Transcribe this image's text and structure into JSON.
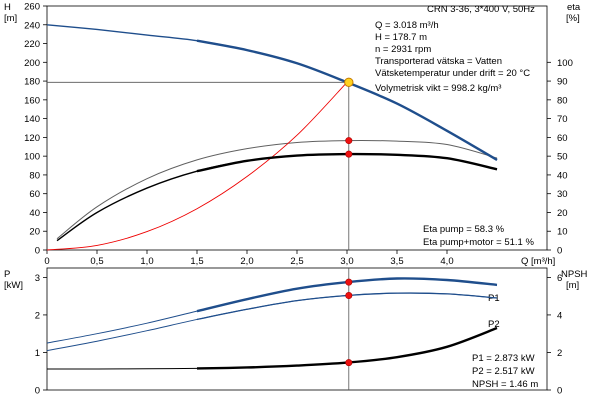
{
  "chart_data": [
    {
      "type": "line",
      "title": "CRN 3-36, 3*400 V, 50Hz",
      "ylabel_left": "H",
      "ylabel_left_unit": "[m]",
      "ylabel_right": "eta",
      "ylabel_right_unit": "[%]",
      "xlabel": "Q [m³/h]",
      "xlim": [
        0,
        5
      ],
      "ylim_left": [
        0,
        260
      ],
      "ylim_right": [
        0,
        130
      ],
      "x_ticks": [
        "0",
        "0,5",
        "1,0",
        "1,5",
        "2,0",
        "2,5",
        "3,0",
        "3,5",
        "4,0"
      ],
      "y_left_ticks": [
        "0",
        "20",
        "40",
        "60",
        "80",
        "100",
        "120",
        "140",
        "160",
        "180",
        "200",
        "220",
        "240",
        "260"
      ],
      "y_right_ticks": [
        "0",
        "10",
        "20",
        "30",
        "40",
        "50",
        "60",
        "70",
        "80",
        "90",
        "100"
      ],
      "grid": false,
      "annotations": {
        "info": [
          "Q = 3.018 m³/h",
          "H = 178.7 m",
          "n = 2931 rpm",
          "Transporterad vätska = Vatten",
          "Vätsketemperatur under drift = 20 °C",
          "Volymetrisk vikt = 998.2 kg/m³"
        ],
        "eta_pump": "Eta pump = 58.3 %",
        "eta_pump_motor": "Eta pump+motor = 51.1 %"
      },
      "duty_point": {
        "x": 3.018,
        "y": 178.7
      },
      "series": [
        {
          "axis": "left",
          "color": "#1f4e8c",
          "x": [
            0,
            0.5,
            1.0,
            1.5,
            2.0,
            2.5,
            3.0,
            3.5,
            4.0,
            4.5
          ],
          "y": [
            240,
            235,
            229,
            223,
            213,
            199,
            178.7,
            156,
            127,
            96
          ]
        },
        {
          "axis": "right",
          "color": "#606060",
          "x": [
            0.1,
            0.5,
            1.0,
            1.5,
            2.0,
            2.5,
            3.0,
            3.5,
            4.0,
            4.5
          ],
          "y": [
            6,
            23,
            38,
            48,
            54,
            57.3,
            58.3,
            58.0,
            56.2,
            49
          ]
        },
        {
          "axis": "right",
          "color": "#000000",
          "x": [
            0.1,
            0.5,
            1.0,
            1.5,
            2.0,
            2.5,
            3.0,
            3.5,
            4.0,
            4.5
          ],
          "y": [
            5,
            20,
            33,
            42,
            47.5,
            50.3,
            51.1,
            50.7,
            48.9,
            43
          ]
        },
        {
          "axis": "left",
          "color": "#ee0000",
          "x": [
            0,
            0.5,
            1.0,
            1.5,
            2.0,
            2.5,
            3.0
          ],
          "y": [
            0,
            4.9,
            19.6,
            44.0,
            78.3,
            122.3,
            178.7
          ]
        }
      ]
    },
    {
      "type": "line",
      "ylabel_left": "P",
      "ylabel_left_unit": "[kW]",
      "ylabel_right": "NPSH",
      "ylabel_right_unit": "[m]",
      "xlim": [
        0,
        5
      ],
      "ylim_left": [
        0,
        3.25
      ],
      "ylim_right": [
        0,
        6.5
      ],
      "y_left_ticks": [
        "0",
        "1",
        "2",
        "3"
      ],
      "y_right_ticks": [
        "0",
        "2",
        "4",
        "6"
      ],
      "grid": false,
      "annotations": {
        "p1": "P1 = 2.873 kW",
        "p2": "P2 = 2.517 kW",
        "npsh": "NPSH = 1.46 m"
      },
      "series_labels": [
        "P1",
        "P2"
      ],
      "series": [
        {
          "name": "P1",
          "axis": "left",
          "color": "#1f4e8c",
          "x": [
            0,
            0.5,
            1.0,
            1.5,
            2.0,
            2.5,
            3.0,
            3.5,
            4.0,
            4.5
          ],
          "y": [
            1.25,
            1.5,
            1.78,
            2.1,
            2.42,
            2.7,
            2.873,
            2.97,
            2.93,
            2.8
          ]
        },
        {
          "name": "P2",
          "axis": "left",
          "color": "#1f4e8c",
          "x": [
            0,
            0.5,
            1.0,
            1.5,
            2.0,
            2.5,
            3.0,
            3.5,
            4.0,
            4.5
          ],
          "y": [
            1.05,
            1.3,
            1.58,
            1.88,
            2.15,
            2.38,
            2.517,
            2.58,
            2.56,
            2.45
          ]
        },
        {
          "name": "NPSH",
          "axis": "right",
          "color": "#000000",
          "x": [
            0,
            0.5,
            1.0,
            1.5,
            2.0,
            2.5,
            3.0,
            3.5,
            4.0,
            4.5
          ],
          "y": [
            1.12,
            1.12,
            1.13,
            1.15,
            1.2,
            1.3,
            1.46,
            1.75,
            2.3,
            3.3
          ]
        }
      ],
      "duty_points": [
        {
          "axis": "left",
          "x": 3.018,
          "y": 2.873
        },
        {
          "axis": "left",
          "x": 3.018,
          "y": 2.517
        },
        {
          "axis": "right",
          "x": 3.018,
          "y": 1.46
        }
      ]
    }
  ]
}
